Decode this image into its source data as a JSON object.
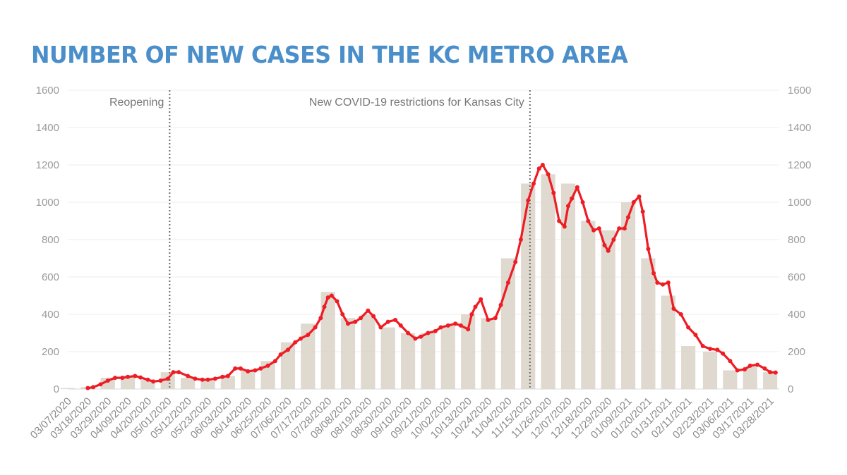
{
  "title": "NUMBER OF NEW CASES IN THE KC METRO AREA",
  "chart_data": {
    "type": "bar",
    "title": "NUMBER OF NEW CASES IN THE KC METRO AREA",
    "xlabel": "",
    "ylabel": "",
    "ylim": [
      0,
      1600
    ],
    "y_ticks": [
      0,
      200,
      400,
      600,
      800,
      1000,
      1200,
      1400,
      1600
    ],
    "y2_ticks": [
      0,
      200,
      400,
      600,
      800,
      1000,
      1200,
      1400,
      1600
    ],
    "x_start": "03/07/2020",
    "x_end": "04/02/2021",
    "grid": "horizontal",
    "legend": "none",
    "colors": {
      "bars": "#d9d2c7",
      "line": "#ee1c24",
      "title": "#4a8fc9",
      "annotation_line": "#6b6b6b"
    },
    "x_tick_labels": [
      "03/07/2020",
      "03/18/2020",
      "03/29/2020",
      "04/09/2020",
      "04/20/2020",
      "05/01/2020",
      "05/12/2020",
      "05/23/2020",
      "06/03/2020",
      "06/14/2020",
      "06/25/2020",
      "07/06/2020",
      "07/17/2020",
      "07/28/2020",
      "08/08/2020",
      "08/19/2020",
      "08/30/2020",
      "09/10/2020",
      "09/21/2020",
      "10/02/2020",
      "10/13/2020",
      "10/24/2020",
      "11/04/2020",
      "11/15/2020",
      "11/26/2020",
      "12/07/2020",
      "12/18/2020",
      "12/29/2020",
      "01/09/2021",
      "01/20/2021",
      "01/31/2021",
      "02/11/2021",
      "02/23/2021",
      "03/06/2021",
      "03/17/2021",
      "03/28/2021"
    ],
    "annotations": [
      {
        "label": "Reopening",
        "date": "05/02/2020"
      },
      {
        "label": "New COVID-19 restrictions for Kansas City",
        "date": "11/16/2020"
      }
    ],
    "series": [
      {
        "type": "bar",
        "description": "Daily new cases",
        "x": [
          "03/07/2020",
          "03/18/2020",
          "03/29/2020",
          "04/09/2020",
          "04/20/2020",
          "05/01/2020",
          "05/12/2020",
          "05/23/2020",
          "06/03/2020",
          "06/14/2020",
          "06/25/2020",
          "07/06/2020",
          "07/17/2020",
          "07/28/2020",
          "08/08/2020",
          "08/19/2020",
          "08/30/2020",
          "09/10/2020",
          "09/21/2020",
          "10/02/2020",
          "10/13/2020",
          "10/24/2020",
          "11/04/2020",
          "11/15/2020",
          "11/26/2020",
          "12/07/2020",
          "12/18/2020",
          "12/29/2020",
          "01/09/2021",
          "01/20/2021",
          "01/31/2021",
          "02/11/2021",
          "02/23/2021",
          "03/06/2021",
          "03/17/2021",
          "03/28/2021"
        ],
        "values": [
          5,
          10,
          60,
          70,
          50,
          90,
          60,
          45,
          70,
          100,
          150,
          250,
          350,
          520,
          380,
          400,
          330,
          300,
          300,
          340,
          400,
          380,
          700,
          1100,
          1150,
          1100,
          900,
          850,
          1000,
          700,
          500,
          230,
          200,
          100,
          120,
          90
        ]
      },
      {
        "type": "line",
        "description": "7-day average",
        "x": [
          "03/18/2020",
          "03/21/2020",
          "03/25/2020",
          "03/29/2020",
          "04/02/2020",
          "04/06/2020",
          "04/09/2020",
          "04/13/2020",
          "04/16/2020",
          "04/20/2020",
          "04/23/2020",
          "04/27/2020",
          "05/01/2020",
          "05/04/2020",
          "05/07/2020",
          "05/12/2020",
          "05/16/2020",
          "05/20/2020",
          "05/23/2020",
          "05/27/2020",
          "05/31/2020",
          "06/03/2020",
          "06/07/2020",
          "06/10/2020",
          "06/14/2020",
          "06/18/2020",
          "06/21/2020",
          "06/25/2020",
          "06/29/2020",
          "07/02/2020",
          "07/06/2020",
          "07/10/2020",
          "07/13/2020",
          "07/17/2020",
          "07/21/2020",
          "07/24/2020",
          "07/26/2020",
          "07/28/2020",
          "07/30/2020",
          "08/02/2020",
          "08/05/2020",
          "08/08/2020",
          "08/12/2020",
          "08/15/2020",
          "08/19/2020",
          "08/22/2020",
          "08/26/2020",
          "08/30/2020",
          "09/03/2020",
          "09/06/2020",
          "09/10/2020",
          "09/14/2020",
          "09/17/2020",
          "09/21/2020",
          "09/25/2020",
          "09/28/2020",
          "10/02/2020",
          "10/06/2020",
          "10/09/2020",
          "10/13/2020",
          "10/15/2020",
          "10/17/2020",
          "10/20/2020",
          "10/24/2020",
          "10/28/2020",
          "10/31/2020",
          "11/04/2020",
          "11/08/2020",
          "11/11/2020",
          "11/15/2020",
          "11/18/2020",
          "11/21/2020",
          "11/23/2020",
          "11/26/2020",
          "11/29/2020",
          "12/02/2020",
          "12/05/2020",
          "12/07/2020",
          "12/09/2020",
          "12/12/2020",
          "12/15/2020",
          "12/18/2020",
          "12/21/2020",
          "12/24/2020",
          "12/27/2020",
          "12/29/2020",
          "01/01/2021",
          "01/04/2021",
          "01/07/2021",
          "01/09/2021",
          "01/12/2021",
          "01/15/2021",
          "01/17/2021",
          "01/20/2021",
          "01/23/2021",
          "01/25/2021",
          "01/28/2021",
          "01/31/2021",
          "02/03/2021",
          "02/07/2021",
          "02/11/2021",
          "02/15/2021",
          "02/19/2021",
          "02/23/2021",
          "02/27/2021",
          "03/02/2021",
          "03/06/2021",
          "03/10/2021",
          "03/14/2021",
          "03/17/2021",
          "03/21/2021",
          "03/25/2021",
          "03/28/2021",
          "03/31/2021"
        ],
        "values": [
          5,
          10,
          25,
          45,
          60,
          60,
          65,
          70,
          62,
          50,
          40,
          45,
          55,
          90,
          90,
          70,
          55,
          50,
          50,
          55,
          65,
          70,
          110,
          110,
          95,
          100,
          110,
          125,
          150,
          185,
          210,
          250,
          270,
          290,
          330,
          380,
          440,
          490,
          500,
          470,
          400,
          350,
          360,
          380,
          420,
          390,
          330,
          360,
          370,
          340,
          300,
          270,
          280,
          300,
          310,
          330,
          340,
          350,
          340,
          320,
          400,
          440,
          480,
          370,
          380,
          450,
          570,
          680,
          800,
          1010,
          1100,
          1180,
          1200,
          1150,
          1050,
          900,
          870,
          980,
          1020,
          1080,
          1000,
          900,
          850,
          860,
          770,
          740,
          800,
          860,
          860,
          920,
          1000,
          1030,
          950,
          750,
          620,
          570,
          560,
          570,
          430,
          400,
          330,
          290,
          230,
          215,
          210,
          190,
          150,
          100,
          105,
          125,
          130,
          110,
          90,
          88
        ]
      }
    ]
  }
}
